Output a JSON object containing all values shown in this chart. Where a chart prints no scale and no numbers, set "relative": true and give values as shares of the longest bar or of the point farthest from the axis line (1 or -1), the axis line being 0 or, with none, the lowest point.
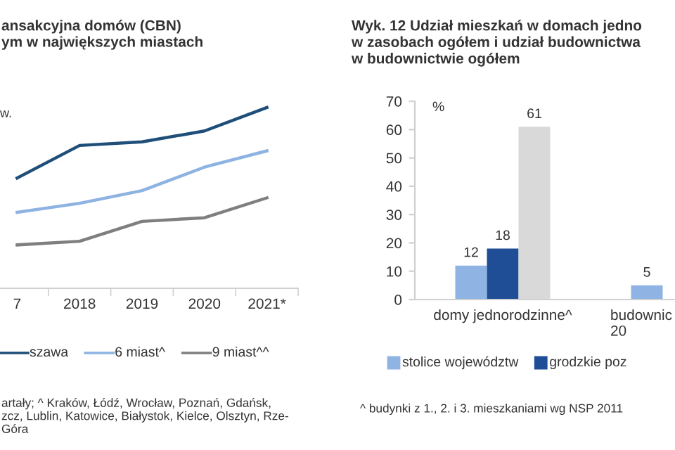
{
  "chart_data": [
    {
      "type": "line",
      "title": "ansakcyjna domów (CBN)\nym w największych miastach",
      "ylabel": "w.",
      "relative": true,
      "categories": [
        "7",
        "2018",
        "2019",
        "2020",
        "2021*"
      ],
      "legend": "bottom",
      "grid": false,
      "marker": "none",
      "line_style": "solid",
      "series": [
        {
          "name": "szawa",
          "color": "#1f4e79",
          "values": [
            0.61,
            0.79,
            0.81,
            0.87,
            1.0
          ]
        },
        {
          "name": "6 miast^",
          "color": "#8db3e2",
          "values": [
            0.42,
            0.47,
            0.54,
            0.67,
            0.76
          ]
        },
        {
          "name": "9 miast^^",
          "color": "#7f7f7f",
          "values": [
            0.24,
            0.26,
            0.37,
            0.39,
            0.5
          ]
        }
      ],
      "annotations": [
        "artały; ^ Kraków, Łódź, Wrocław, Poznań, Gdańsk,\nzcz, Lublin, Katowice, Białystok, Kielce, Olsztyn, Rze-\nGóra"
      ]
    },
    {
      "type": "bar",
      "title": "Wyk. 12 Udział mieszkań w domach jedno\nw zasobach ogółem i udział budownictwa\nw budownictwie ogółem",
      "ylabel": "%",
      "categories": [
        "domy jednorodzinne^",
        "budownic\n20"
      ],
      "ylim": [
        0,
        70
      ],
      "yticks": [
        0,
        10,
        20,
        30,
        40,
        50,
        60,
        70
      ],
      "grid": false,
      "legend": "bottom",
      "data_labels": true,
      "series": [
        {
          "name": "stolice województw",
          "color": "#8fb4e3",
          "values": [
            12,
            5
          ]
        },
        {
          "name": "grodzkie poz",
          "color": "#1f4e96",
          "values": [
            18,
            null
          ]
        },
        {
          "color": "#d9d9d9",
          "values": [
            61,
            null
          ]
        }
      ],
      "annotations": [
        "^ budynki z 1., 2. i 3. mieszkaniami wg NSP 2011"
      ]
    }
  ]
}
